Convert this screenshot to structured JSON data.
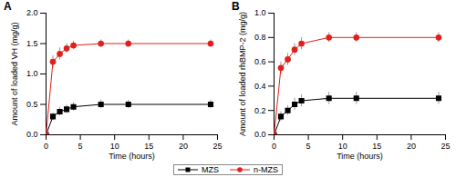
{
  "chart_data": [
    {
      "type": "line",
      "title": "A",
      "x_label": "Time (hours)",
      "y_label": "Amount of loaded VH (mg/g)",
      "x": [
        0,
        1,
        2,
        3,
        4,
        8,
        12,
        24
      ],
      "xlim": [
        0,
        25
      ],
      "xticks": [
        0,
        5,
        10,
        15,
        20,
        25
      ],
      "ylim": [
        0,
        2
      ],
      "yticks": [
        {
          "value": 0,
          "label": "0.0"
        },
        0.5,
        {
          "value": 1,
          "label": "1.0"
        },
        1.5,
        {
          "value": 2,
          "label": "2.0"
        }
      ],
      "grid": false,
      "legend": "bottom",
      "series": [
        {
          "name": "MZS",
          "color": "#000000",
          "marker": "square",
          "values": [
            0,
            0.3,
            0.38,
            0.42,
            0.46,
            0.5,
            0.5,
            0.5
          ],
          "errors": [
            0,
            0.06,
            0.07,
            0.07,
            0.07,
            0.07,
            0.07,
            0.07
          ]
        },
        {
          "name": "n-MZS",
          "color": "#e0201c",
          "marker": "circle",
          "values": [
            0,
            1.2,
            1.33,
            1.42,
            1.47,
            1.5,
            1.5,
            1.5
          ],
          "errors": [
            0,
            0.1,
            0.1,
            0.08,
            0.07,
            0.06,
            0.06,
            0.06
          ]
        }
      ]
    },
    {
      "type": "line",
      "title": "B",
      "x_label": "Time (hours)",
      "y_label": "Amount of loaded rhBMP-2 (mg/g)",
      "x": [
        0,
        1,
        2,
        3,
        4,
        8,
        12,
        24
      ],
      "xlim": [
        0,
        25
      ],
      "xticks": [
        0,
        5,
        10,
        15,
        20,
        25
      ],
      "ylim": [
        0,
        1
      ],
      "yticks": [
        {
          "value": 0,
          "label": "0.0"
        },
        0.2,
        0.4,
        0.6,
        0.8,
        {
          "value": 1,
          "label": "1.0"
        }
      ],
      "grid": false,
      "legend": "bottom",
      "series": [
        {
          "name": "MZS",
          "color": "#000000",
          "marker": "square",
          "values": [
            0,
            0.15,
            0.2,
            0.25,
            0.28,
            0.3,
            0.3,
            0.3
          ],
          "errors": [
            0,
            0.04,
            0.04,
            0.05,
            0.05,
            0.05,
            0.05,
            0.05
          ]
        },
        {
          "name": "n-MZS",
          "color": "#e0201c",
          "marker": "circle",
          "values": [
            0,
            0.55,
            0.62,
            0.7,
            0.75,
            0.8,
            0.8,
            0.8
          ],
          "errors": [
            0,
            0.05,
            0.05,
            0.05,
            0.05,
            0.04,
            0.04,
            0.04
          ]
        }
      ]
    }
  ]
}
